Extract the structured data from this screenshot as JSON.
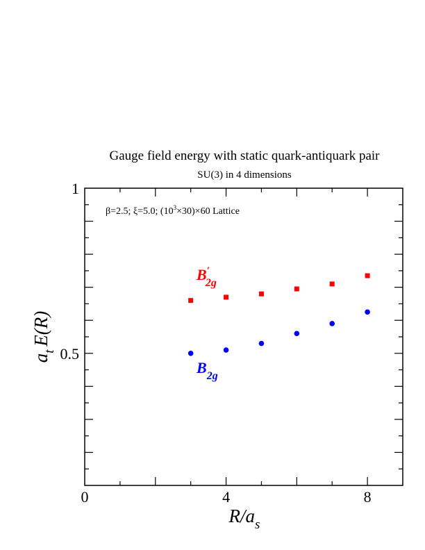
{
  "chart_data": {
    "type": "scatter",
    "title": "Gauge field energy with static quark-antiquark pair",
    "subtitle": "SU(3) in 4 dimensions",
    "annotation": "β=2.5;  ξ=5.0;  (10³×30)×60 Lattice",
    "xlabel": "R/a_s",
    "ylabel": "a_t E(R)",
    "xlim": [
      0,
      9
    ],
    "ylim": [
      0.1,
      1
    ],
    "x_ticks": [
      "0",
      "4",
      "8"
    ],
    "y_ticks": [
      "0.5",
      "1"
    ],
    "grid": false,
    "legend": "none",
    "series": [
      {
        "name": "B′2g",
        "color": "#ff0000",
        "marker": "square",
        "x": [
          3,
          4,
          5,
          6,
          7,
          8
        ],
        "y": [
          0.66,
          0.67,
          0.68,
          0.695,
          0.71,
          0.735
        ]
      },
      {
        "name": "B2g",
        "color": "#0000ff",
        "marker": "circle",
        "x": [
          3,
          4,
          5,
          6,
          7,
          8
        ],
        "y": [
          0.5,
          0.51,
          0.53,
          0.56,
          0.59,
          0.625
        ]
      }
    ]
  }
}
